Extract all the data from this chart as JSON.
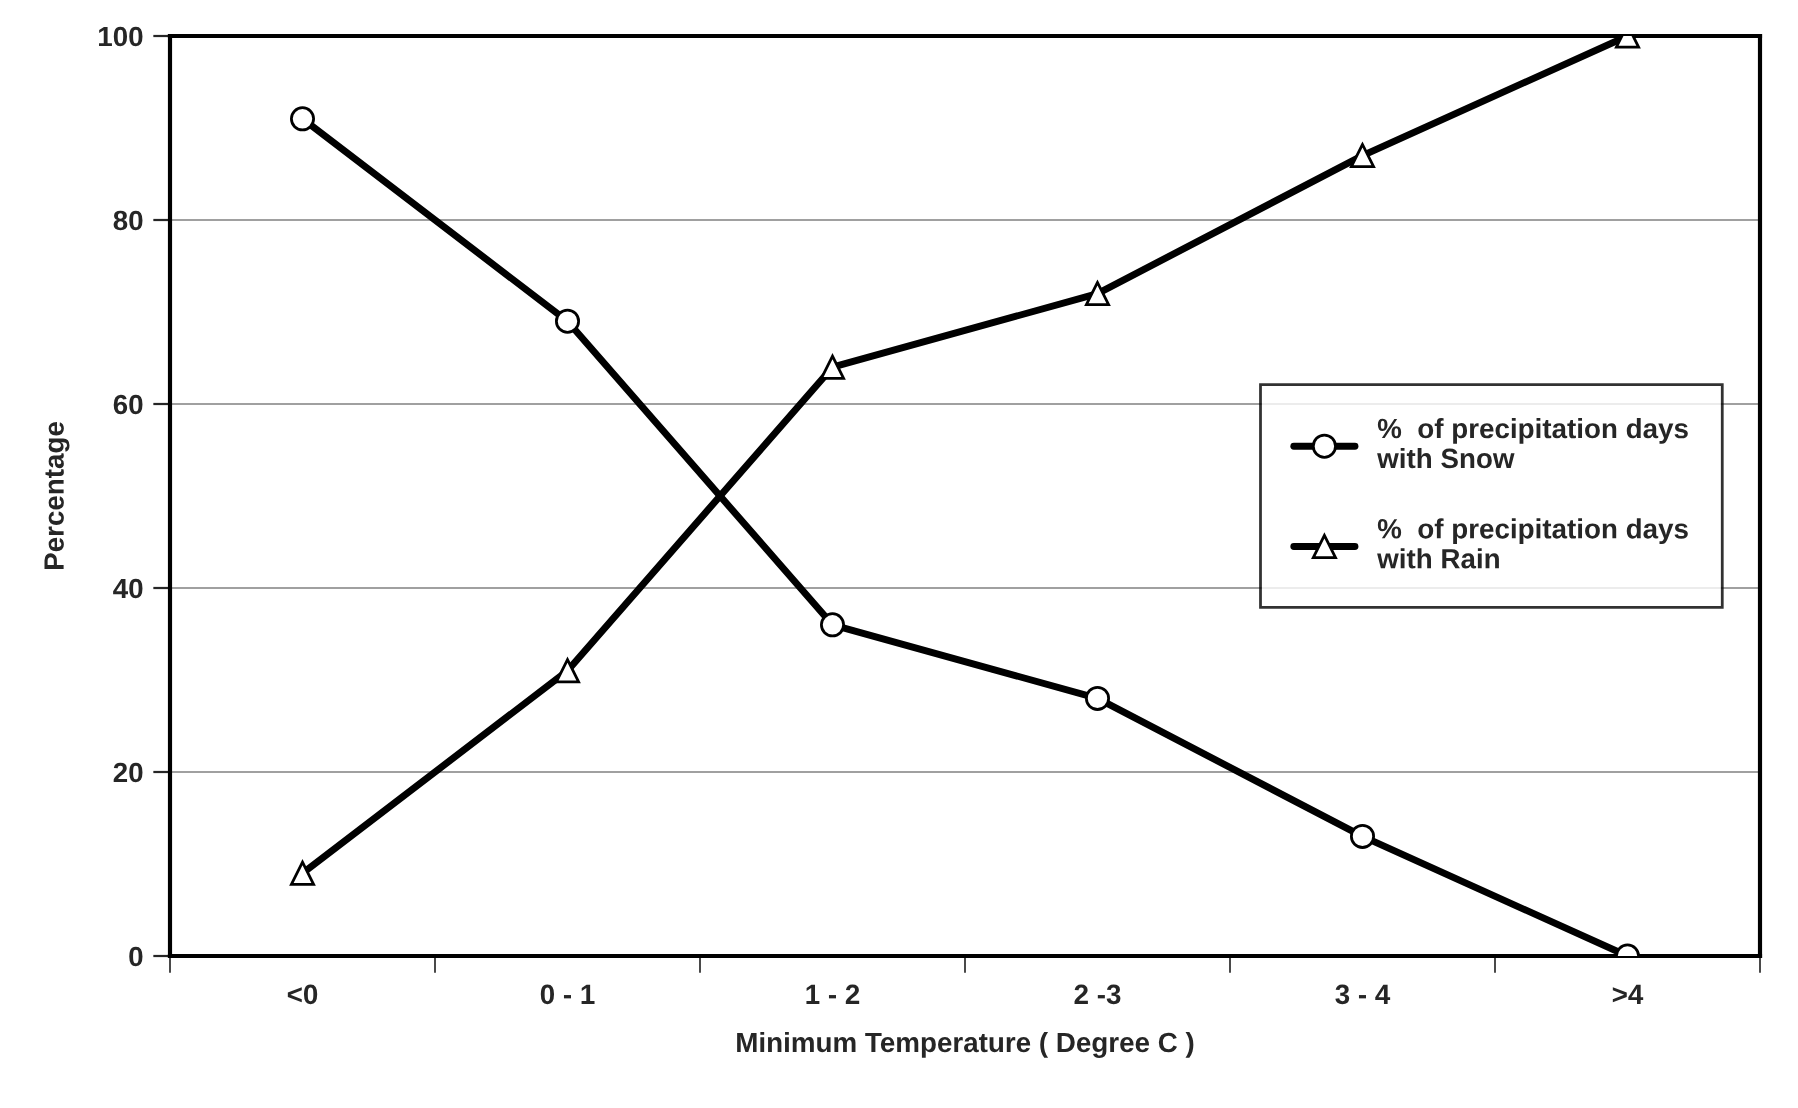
{
  "chart_data": {
    "type": "line",
    "xlabel": "Minimum Temperature ( Degree C )",
    "ylabel": "Percentage",
    "categories": [
      "<0",
      "0 - 1",
      "1 - 2",
      "2 -3",
      "3 - 4",
      ">4"
    ],
    "series": [
      {
        "name": "%  of precipitation days\nwith Snow",
        "color": "#000000",
        "marker": "circle",
        "values": [
          91,
          69,
          36,
          28,
          13,
          0
        ]
      },
      {
        "name": "%  of precipitation days\nwith Rain",
        "color": "#000000",
        "marker": "triangle",
        "values": [
          9,
          31,
          64,
          72,
          87,
          100
        ]
      }
    ],
    "ylim": [
      0,
      100
    ],
    "yticks": [
      0,
      20,
      40,
      60,
      80,
      100
    ],
    "grid": "y",
    "legend": "right",
    "line_style": "solid"
  }
}
